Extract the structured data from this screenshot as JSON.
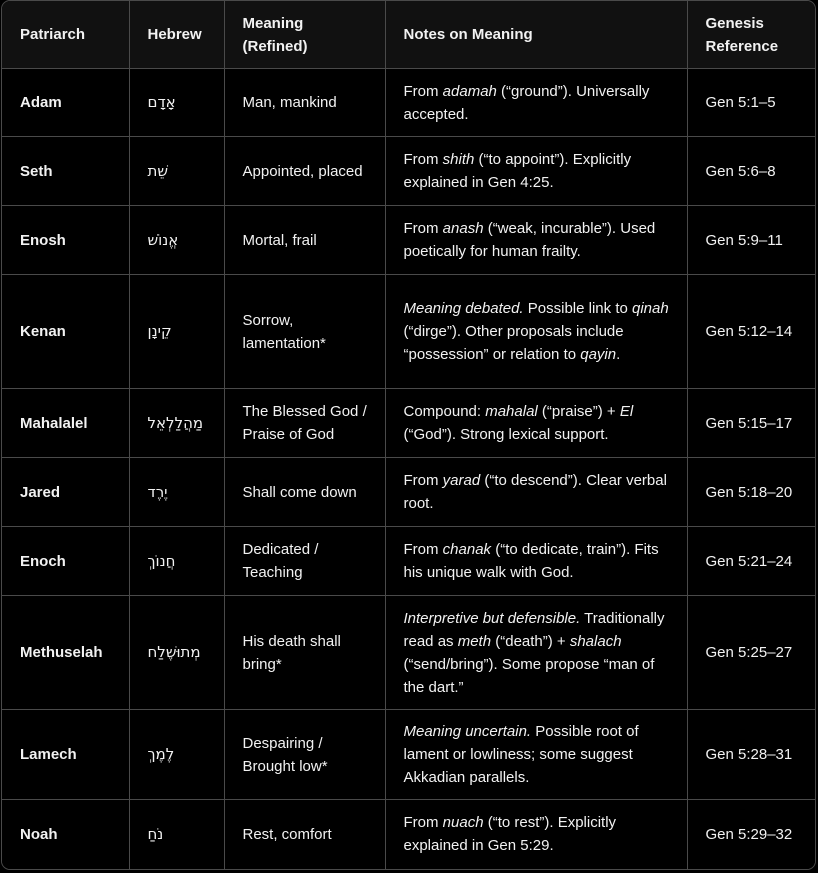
{
  "headers": [
    "Patriarch",
    "Hebrew",
    "Meaning (Refined)",
    "Notes on Meaning",
    "Genesis Reference"
  ],
  "rows": [
    {
      "patriarch": "Adam",
      "hebrew": "אָדָם",
      "meaning": "Man, mankind",
      "notes": [
        {
          "t": "From "
        },
        {
          "t": "adamah",
          "i": true
        },
        {
          "t": " (“ground”). Universally accepted."
        }
      ],
      "ref": "Gen 5:1–5"
    },
    {
      "patriarch": "Seth",
      "hebrew": "שֵׁת",
      "meaning": "Appointed, placed",
      "notes": [
        {
          "t": "From "
        },
        {
          "t": "shith",
          "i": true
        },
        {
          "t": " (“to appoint”). Explicitly explained in Gen 4:25."
        }
      ],
      "ref": "Gen 5:6–8"
    },
    {
      "patriarch": "Enosh",
      "hebrew": "אֱנוֹשׁ",
      "meaning": "Mortal, frail",
      "notes": [
        {
          "t": "From "
        },
        {
          "t": "anash",
          "i": true
        },
        {
          "t": " (“weak, incurable”). Used poetically for human frailty."
        }
      ],
      "ref": "Gen 5:9–11"
    },
    {
      "patriarch": "Kenan",
      "hebrew": "קֵינָן",
      "meaning": "Sorrow, lamentation*",
      "notes": [
        {
          "t": "Meaning debated.",
          "i": true
        },
        {
          "t": " Possible link to "
        },
        {
          "t": "qinah",
          "i": true
        },
        {
          "t": " (“dirge”). Other proposals include “possession” or relation to "
        },
        {
          "t": "qayin",
          "i": true
        },
        {
          "t": "."
        }
      ],
      "ref": "Gen 5:12–14"
    },
    {
      "patriarch": "Mahalalel",
      "hebrew": "מַהֲלַלְאֵל",
      "meaning": "The Blessed God / Praise of God",
      "notes": [
        {
          "t": "Compound: "
        },
        {
          "t": "mahalal",
          "i": true
        },
        {
          "t": " (“praise”) + "
        },
        {
          "t": "El",
          "i": true
        },
        {
          "t": " (“God”). Strong lexical support."
        }
      ],
      "ref": "Gen 5:15–17"
    },
    {
      "patriarch": "Jared",
      "hebrew": "יֶרֶד",
      "meaning": "Shall come down",
      "notes": [
        {
          "t": "From "
        },
        {
          "t": "yarad",
          "i": true
        },
        {
          "t": " (“to descend”). Clear verbal root."
        }
      ],
      "ref": "Gen 5:18–20"
    },
    {
      "patriarch": "Enoch",
      "hebrew": "חֲנוֹךְ",
      "meaning": "Dedicated / Teaching",
      "notes": [
        {
          "t": "From "
        },
        {
          "t": "chanak",
          "i": true
        },
        {
          "t": " (“to dedicate, train”). Fits his unique walk with God."
        }
      ],
      "ref": "Gen 5:21–24"
    },
    {
      "patriarch": "Methuselah",
      "hebrew": "מְתוּשֶׁלַח",
      "meaning": "His death shall bring*",
      "notes": [
        {
          "t": "Interpretive but defensible.",
          "i": true
        },
        {
          "t": " Traditionally read as "
        },
        {
          "t": "meth",
          "i": true
        },
        {
          "t": " (“death”) + "
        },
        {
          "t": "shalach",
          "i": true
        },
        {
          "t": " (“send/bring”). Some propose “man of the dart.”"
        }
      ],
      "ref": "Gen 5:25–27"
    },
    {
      "patriarch": "Lamech",
      "hebrew": "לֶמֶךְ",
      "meaning": "Despairing / Brought low*",
      "notes": [
        {
          "t": "Meaning uncertain.",
          "i": true
        },
        {
          "t": " Possible root of lament or lowliness; some suggest Akkadian parallels."
        }
      ],
      "ref": "Gen 5:28–31"
    },
    {
      "patriarch": "Noah",
      "hebrew": "נֹחַ",
      "meaning": "Rest, comfort",
      "notes": [
        {
          "t": "From "
        },
        {
          "t": "nuach",
          "i": true
        },
        {
          "t": " (“to rest”). Explicitly explained in Gen 5:29."
        }
      ],
      "ref": "Gen 5:29–32"
    }
  ]
}
